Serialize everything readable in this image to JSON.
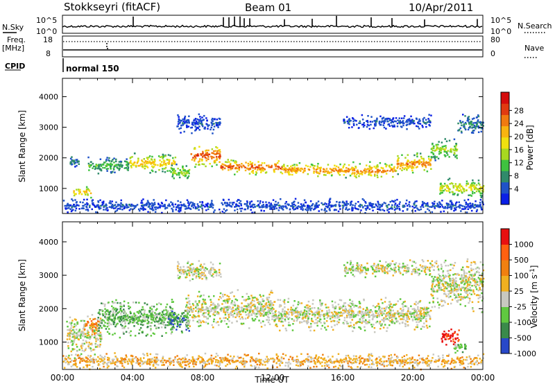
{
  "header": {
    "station": "Stokkseyri (fitACF)",
    "beam": "Beam 01",
    "date": "10/Apr/2011"
  },
  "strip": {
    "nsky_label": "N.Sky",
    "nsky_ticks": [
      "10^5",
      "10^0"
    ],
    "nsearch_label": "N.Search",
    "nsearch_ticks": [
      "10^5",
      "10^0"
    ],
    "freq_label": "Freq.",
    "freq_unit": "[MHz]",
    "freq_ticks": [
      "18",
      "8"
    ],
    "nave_label": "Nave",
    "nave_ticks": [
      "80",
      "0"
    ],
    "cpid_label": "CPID",
    "cpid_value": "normal 150"
  },
  "chart_data": [
    {
      "type": "heatmap",
      "panel": "power",
      "ylabel": "Slant Range [km]",
      "y_ticks": [
        1000,
        2000,
        3000,
        4000
      ],
      "ylim": [
        180,
        4600
      ],
      "xlim_hours": [
        0,
        24
      ],
      "colorbar": {
        "label": "Power [dB]",
        "ticks": [
          "28",
          "24",
          "20",
          "16",
          "12",
          "8",
          "4"
        ],
        "colors": [
          "#0a1fe6",
          "#1f52c8",
          "#2f8a6a",
          "#3fc23f",
          "#a8d820",
          "#f0e010",
          "#f8b410",
          "#f07a10",
          "#e03a10",
          "#d40c0c"
        ]
      },
      "bands": [
        {
          "t": [
            0.4,
            0.9
          ],
          "r": [
            1700,
            2100
          ],
          "lvl": 2
        },
        {
          "t": [
            0.6,
            1.6
          ],
          "r": [
            700,
            1100
          ],
          "lvl": 6
        },
        {
          "t": [
            1.4,
            3.8
          ],
          "r": [
            1450,
            2100
          ],
          "lvl": 3
        },
        {
          "t": [
            3.8,
            6.4
          ],
          "r": [
            1500,
            2200
          ],
          "lvl": 6
        },
        {
          "t": [
            6.2,
            7.2
          ],
          "r": [
            1200,
            1900
          ],
          "lvl": 4
        },
        {
          "t": [
            7.3,
            9.0
          ],
          "r": [
            1700,
            2500
          ],
          "lvl": 8
        },
        {
          "t": [
            9.0,
            12.5
          ],
          "r": [
            1450,
            2000
          ],
          "lvl": 8
        },
        {
          "t": [
            12.5,
            16.5
          ],
          "r": [
            1350,
            1900
          ],
          "lvl": 7
        },
        {
          "t": [
            16.5,
            19.0
          ],
          "r": [
            1300,
            1900
          ],
          "lvl": 7
        },
        {
          "t": [
            19.0,
            21.0
          ],
          "r": [
            1450,
            2200
          ],
          "lvl": 7
        },
        {
          "t": [
            21.0,
            22.5
          ],
          "r": [
            1900,
            2700
          ],
          "lvl": 4
        },
        {
          "t": [
            22.5,
            24.0
          ],
          "r": [
            2700,
            3500
          ],
          "lvl": 2
        },
        {
          "t": [
            6.5,
            9.0
          ],
          "r": [
            2800,
            3500
          ],
          "lvl": 1
        },
        {
          "t": [
            16.0,
            21.0
          ],
          "r": [
            2950,
            3450
          ],
          "lvl": 1
        },
        {
          "t": [
            21.5,
            24.0
          ],
          "r": [
            700,
            1400
          ],
          "lvl": 5
        },
        {
          "t": [
            0.0,
            24.0
          ],
          "r": [
            200,
            700
          ],
          "lvl": 1
        }
      ]
    },
    {
      "type": "heatmap",
      "panel": "velocity",
      "xlabel": "Time UT",
      "ylabel": "Slant Range [km]",
      "y_ticks": [
        1000,
        2000,
        3000,
        4000
      ],
      "ylim": [
        180,
        4600
      ],
      "xlim_hours": [
        0,
        24
      ],
      "x_ticks": [
        "00:00",
        "04:00",
        "08:00",
        "12:00",
        "16:00",
        "20:00",
        "00:00"
      ],
      "colorbar": {
        "label": "Velocity [m s^-1]",
        "ticks": [
          "1000",
          "500",
          "100",
          "25",
          "-25",
          "-100",
          "-500",
          "-1000"
        ],
        "colors": [
          "#2848c8",
          "#3a8a4a",
          "#60c840",
          "#c8c8c0",
          "#f0b020",
          "#f08010",
          "#ff6010",
          "#e81010"
        ]
      },
      "bands": [
        {
          "t": [
            0.2,
            2.2
          ],
          "r": [
            500,
            1900
          ],
          "lvl": 3
        },
        {
          "t": [
            1.2,
            2.0
          ],
          "r": [
            1250,
            1850
          ],
          "lvl": 5
        },
        {
          "t": [
            2.0,
            6.4
          ],
          "r": [
            1100,
            2400
          ],
          "lvl": 2
        },
        {
          "t": [
            6.0,
            7.2
          ],
          "r": [
            1200,
            2100
          ],
          "lvl": 1
        },
        {
          "t": [
            6.5,
            9.0
          ],
          "r": [
            2800,
            3500
          ],
          "lvl": 3
        },
        {
          "t": [
            7.0,
            12.0
          ],
          "r": [
            1400,
            2600
          ],
          "lvl": 3
        },
        {
          "t": [
            12.0,
            21.0
          ],
          "r": [
            1300,
            2400
          ],
          "lvl": 3
        },
        {
          "t": [
            16.0,
            21.0
          ],
          "r": [
            2950,
            3500
          ],
          "lvl": 3
        },
        {
          "t": [
            21.0,
            24.0
          ],
          "r": [
            1900,
            3600
          ],
          "lvl": 3
        },
        {
          "t": [
            21.6,
            22.6
          ],
          "r": [
            900,
            1500
          ],
          "lvl": 7
        },
        {
          "t": [
            22.3,
            23.0
          ],
          "r": [
            700,
            1000
          ],
          "lvl": 2
        },
        {
          "t": [
            0.0,
            24.0
          ],
          "r": [
            200,
            700
          ],
          "lvl": 4
        }
      ]
    }
  ]
}
